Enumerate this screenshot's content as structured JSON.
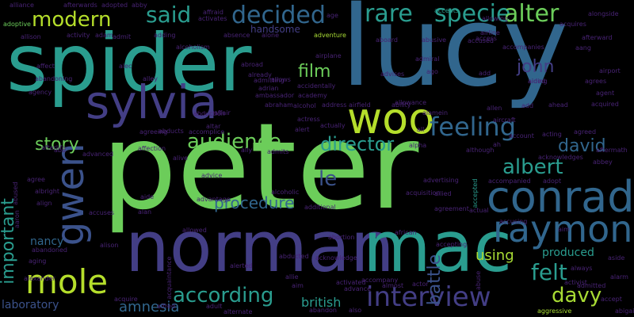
{
  "palette": {
    "background": "#000000",
    "green": "#6ccd5a",
    "teal": "#2a9d8f",
    "blue": "#31668d",
    "indigo": "#433e85",
    "olive": "#a8db34",
    "purple": "#482374",
    "cyan": "#1f9e89",
    "lime": "#b5de2b",
    "navy": "#3b528b",
    "dim": "#34285e"
  },
  "words": [
    {
      "text": "peter",
      "color": "green"
    },
    {
      "text": "lucy",
      "color": "blue"
    },
    {
      "text": "spider",
      "color": "teal"
    },
    {
      "text": "norman",
      "color": "indigo"
    },
    {
      "text": "mac",
      "color": "teal"
    },
    {
      "text": "sylvia",
      "color": "indigo"
    },
    {
      "text": "conrad",
      "color": "blue"
    },
    {
      "text": "woo",
      "color": "lime"
    },
    {
      "text": "raymond",
      "color": "blue"
    },
    {
      "text": "gwen",
      "color": "navy"
    },
    {
      "text": "mole",
      "color": "lime"
    },
    {
      "text": "interview",
      "color": "indigo"
    },
    {
      "text": "feeling",
      "color": "blue"
    },
    {
      "text": "decided",
      "color": "blue"
    },
    {
      "text": "rare",
      "color": "teal"
    },
    {
      "text": "specie",
      "color": "teal"
    },
    {
      "text": "alter",
      "color": "green"
    },
    {
      "text": "said",
      "color": "teal"
    },
    {
      "text": "modern",
      "color": "lime"
    },
    {
      "text": "albert",
      "color": "teal"
    },
    {
      "text": "david",
      "color": "blue"
    },
    {
      "text": "felt",
      "color": "teal"
    },
    {
      "text": "davy",
      "color": "olive"
    },
    {
      "text": "according",
      "color": "teal"
    },
    {
      "text": "audience",
      "color": "green"
    },
    {
      "text": "director",
      "color": "teal"
    },
    {
      "text": "john",
      "color": "indigo"
    },
    {
      "text": "film",
      "color": "green"
    },
    {
      "text": "story",
      "color": "green"
    },
    {
      "text": "important",
      "color": "teal"
    },
    {
      "text": "battle",
      "color": "navy"
    },
    {
      "text": "le",
      "color": "navy"
    },
    {
      "text": "procedure",
      "color": "blue"
    },
    {
      "text": "amnesia",
      "color": "blue"
    },
    {
      "text": "laboratory",
      "color": "navy"
    },
    {
      "text": "using",
      "color": "olive"
    },
    {
      "text": "produced",
      "color": "teal"
    },
    {
      "text": "nancy",
      "color": "blue"
    },
    {
      "text": "british",
      "color": "teal"
    },
    {
      "text": "handsome",
      "color": "indigo"
    },
    {
      "text": "alliance",
      "color": "purple"
    },
    {
      "text": "afterwards",
      "color": "purple"
    },
    {
      "text": "adopted",
      "color": "purple"
    },
    {
      "text": "abby",
      "color": "purple"
    },
    {
      "text": "affraid",
      "color": "purple"
    },
    {
      "text": "age",
      "color": "purple"
    },
    {
      "text": "alongside",
      "color": "purple"
    },
    {
      "text": "adoptive",
      "color": "green"
    },
    {
      "text": "accepts",
      "color": "teal"
    },
    {
      "text": "allison",
      "color": "purple"
    },
    {
      "text": "activity",
      "color": "purple"
    },
    {
      "text": "adam",
      "color": "purple"
    },
    {
      "text": "admit",
      "color": "purple"
    },
    {
      "text": "adding",
      "color": "purple"
    },
    {
      "text": "absence",
      "color": "purple"
    },
    {
      "text": "alone",
      "color": "purple"
    },
    {
      "text": "adventure",
      "color": "olive"
    },
    {
      "text": "aboard",
      "color": "purple"
    },
    {
      "text": "abusive",
      "color": "purple"
    },
    {
      "text": "accompanies",
      "color": "purple"
    },
    {
      "text": "aang",
      "color": "purple"
    },
    {
      "text": "airport",
      "color": "purple"
    },
    {
      "text": "aiding",
      "color": "purple"
    },
    {
      "text": "airplane",
      "color": "purple"
    },
    {
      "text": "admiral",
      "color": "purple"
    },
    {
      "text": "advises",
      "color": "purple"
    },
    {
      "text": "ago",
      "color": "purple"
    },
    {
      "text": "alley",
      "color": "purple"
    },
    {
      "text": "already",
      "color": "purple"
    },
    {
      "text": "agrees",
      "color": "purple"
    },
    {
      "text": "aided",
      "color": "purple"
    },
    {
      "text": "agent",
      "color": "purple"
    },
    {
      "text": "accidentally",
      "color": "purple"
    },
    {
      "text": "alcohol",
      "color": "purple"
    },
    {
      "text": "address",
      "color": "purple"
    },
    {
      "text": "airfield",
      "color": "purple"
    },
    {
      "text": "ability",
      "color": "purple"
    },
    {
      "text": "allen",
      "color": "purple"
    },
    {
      "text": "add",
      "color": "purple"
    },
    {
      "text": "ahead",
      "color": "purple"
    },
    {
      "text": "acquired",
      "color": "purple"
    },
    {
      "text": "abduction",
      "color": "purple"
    },
    {
      "text": "ambassador",
      "color": "purple"
    },
    {
      "text": "abraham",
      "color": "purple"
    },
    {
      "text": "academy",
      "color": "purple"
    },
    {
      "text": "actress",
      "color": "purple"
    },
    {
      "text": "actually",
      "color": "purple"
    },
    {
      "text": "alert",
      "color": "purple"
    },
    {
      "text": "alamein",
      "color": "purple"
    },
    {
      "text": "aircraft",
      "color": "purple"
    },
    {
      "text": "agreed",
      "color": "purple"
    },
    {
      "text": "aftermath",
      "color": "purple"
    },
    {
      "text": "abbey",
      "color": "purple"
    },
    {
      "text": "acknowledges",
      "color": "purple"
    },
    {
      "text": "adopt",
      "color": "purple"
    },
    {
      "text": "accompanied",
      "color": "purple"
    },
    {
      "text": "although",
      "color": "purple"
    },
    {
      "text": "alpha",
      "color": "purple"
    },
    {
      "text": "afterlife",
      "color": "purple"
    },
    {
      "text": "abu",
      "color": "purple"
    },
    {
      "text": "advanced",
      "color": "purple"
    },
    {
      "text": "affection",
      "color": "purple"
    },
    {
      "text": "abducts",
      "color": "purple"
    },
    {
      "text": "agreeing",
      "color": "purple"
    },
    {
      "text": "alive",
      "color": "purple"
    },
    {
      "text": "ally",
      "color": "purple"
    },
    {
      "text": "admits",
      "color": "purple"
    },
    {
      "text": "advice",
      "color": "purple"
    },
    {
      "text": "aide",
      "color": "purple"
    },
    {
      "text": "alcoholic",
      "color": "purple"
    },
    {
      "text": "alan",
      "color": "purple"
    },
    {
      "text": "align",
      "color": "purple"
    },
    {
      "text": "albright",
      "color": "purple"
    },
    {
      "text": "agree",
      "color": "purple"
    },
    {
      "text": "abandoning",
      "color": "purple"
    },
    {
      "text": "agency",
      "color": "purple"
    },
    {
      "text": "affect",
      "color": "purple"
    },
    {
      "text": "alec",
      "color": "purple"
    },
    {
      "text": "aging",
      "color": "purple"
    },
    {
      "text": "accuses",
      "color": "purple"
    },
    {
      "text": "abandoned",
      "color": "purple"
    },
    {
      "text": "alexander",
      "color": "purple"
    },
    {
      "text": "alison",
      "color": "purple"
    },
    {
      "text": "allowed",
      "color": "purple"
    },
    {
      "text": "advantage",
      "color": "purple"
    },
    {
      "text": "alerted",
      "color": "purple"
    },
    {
      "text": "abducted",
      "color": "purple"
    },
    {
      "text": "additional",
      "color": "purple"
    },
    {
      "text": "abortion",
      "color": "purple"
    },
    {
      "text": "acknowledge",
      "color": "purple"
    },
    {
      "text": "agreement",
      "color": "purple"
    },
    {
      "text": "actual",
      "color": "purple"
    },
    {
      "text": "accepting",
      "color": "purple"
    },
    {
      "text": "accompany",
      "color": "purple"
    },
    {
      "text": "african",
      "color": "purple"
    },
    {
      "text": "accusing",
      "color": "purple"
    },
    {
      "text": "activist",
      "color": "purple"
    },
    {
      "text": "alarm",
      "color": "purple"
    },
    {
      "text": "always",
      "color": "purple"
    },
    {
      "text": "aside",
      "color": "purple"
    },
    {
      "text": "allie",
      "color": "purple"
    },
    {
      "text": "aim",
      "color": "purple"
    },
    {
      "text": "activated",
      "color": "purple"
    },
    {
      "text": "advance",
      "color": "purple"
    },
    {
      "text": "almost",
      "color": "purple"
    },
    {
      "text": "actor",
      "color": "purple"
    },
    {
      "text": "admitted",
      "color": "purple"
    },
    {
      "text": "acquire",
      "color": "purple"
    },
    {
      "text": "alfred",
      "color": "purple"
    },
    {
      "text": "adult",
      "color": "purple"
    },
    {
      "text": "alternate",
      "color": "purple"
    },
    {
      "text": "abandon",
      "color": "purple"
    },
    {
      "text": "also",
      "color": "purple"
    },
    {
      "text": "aggressive",
      "color": "olive"
    },
    {
      "text": "accept",
      "color": "purple"
    },
    {
      "text": "abigail",
      "color": "purple"
    },
    {
      "text": "abused",
      "color": "purple"
    },
    {
      "text": "aaron",
      "color": "purple"
    },
    {
      "text": "acquaintance",
      "color": "purple"
    },
    {
      "text": "abuse",
      "color": "purple"
    },
    {
      "text": "ah",
      "color": "purple"
    },
    {
      "text": "acting",
      "color": "purple"
    },
    {
      "text": "accepted",
      "color": "teal"
    },
    {
      "text": "access",
      "color": "purple"
    },
    {
      "text": "airline",
      "color": "purple"
    },
    {
      "text": "allowing",
      "color": "purple"
    },
    {
      "text": "acquires",
      "color": "purple"
    },
    {
      "text": "afterward",
      "color": "purple"
    },
    {
      "text": "accused",
      "color": "purple"
    },
    {
      "text": "account",
      "color": "purple"
    },
    {
      "text": "accomplice",
      "color": "purple"
    },
    {
      "text": "affair",
      "color": "purple"
    },
    {
      "text": "altar",
      "color": "purple"
    },
    {
      "text": "alcoholism",
      "color": "purple"
    },
    {
      "text": "allows",
      "color": "purple"
    },
    {
      "text": "activates",
      "color": "purple"
    },
    {
      "text": "admitting",
      "color": "purple"
    },
    {
      "text": "adrian",
      "color": "purple"
    },
    {
      "text": "advertising",
      "color": "purple"
    },
    {
      "text": "acquisition",
      "color": "purple"
    },
    {
      "text": "allied",
      "color": "purple"
    },
    {
      "text": "allowance",
      "color": "purple"
    },
    {
      "text": "abroad",
      "color": "purple"
    },
    {
      "text": "add",
      "color": "purple"
    },
    {
      "text": "aim",
      "color": "purple"
    },
    {
      "text": "all",
      "color": "purple"
    }
  ]
}
